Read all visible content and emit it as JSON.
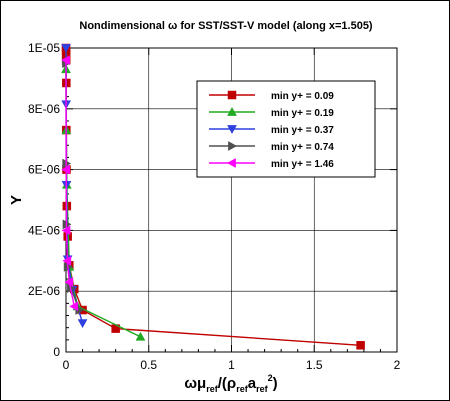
{
  "chart_data": {
    "type": "line",
    "title": "Nondimensional ω for SST/SST-V model (along x=1.505)",
    "xlabel_parts": [
      "ωμ",
      "ref",
      "/(ρ",
      "ref",
      "a",
      "ref",
      "2",
      ")"
    ],
    "ylabel": "Y",
    "xlim": [
      0,
      2
    ],
    "ylim": [
      0,
      1e-05
    ],
    "xticks": [
      0,
      0.5,
      1,
      1.5,
      2
    ],
    "xtick_labels": [
      "0",
      "0.5",
      "1",
      "1.5",
      "2"
    ],
    "yticks": [
      0,
      2e-06,
      4e-06,
      6e-06,
      8e-06,
      1e-05
    ],
    "ytick_labels": [
      "0",
      "2E-06",
      "4E-06",
      "6E-06",
      "8E-06",
      "1E-05"
    ],
    "grid": true,
    "legend_position": "top-right",
    "series": [
      {
        "name": "min y+ = 0.09",
        "color": "#c00000",
        "marker": "square",
        "x": [
          1.78,
          0.3,
          0.1,
          0.05,
          0.02,
          0.01,
          0.005,
          0.003,
          0.002,
          0.002,
          0.001,
          0.001,
          0.0005,
          0.0003
        ],
        "y": [
          2.2e-07,
          7.7e-07,
          1.38e-06,
          2.07e-06,
          2.85e-06,
          3.8e-06,
          4.8e-06,
          6e-06,
          7.3e-06,
          8.85e-06,
          9.6e-06,
          9.8e-06,
          9.9e-06,
          1e-05
        ]
      },
      {
        "name": "min y+ = 0.19",
        "color": "#22aa22",
        "marker": "triangle-up",
        "x": [
          0.45,
          0.07,
          0.02,
          0.005,
          0.002,
          0.0
        ],
        "y": [
          5e-07,
          1.5e-06,
          2.8e-06,
          5.5e-06,
          7.3e-06,
          9.3e-06
        ]
      },
      {
        "name": "min y+ = 0.37",
        "color": "#3040e0",
        "marker": "triangle-down",
        "x": [
          0.1,
          0.04,
          0.01,
          0.003,
          0.001,
          0.0
        ],
        "y": [
          9.5e-07,
          2.05e-06,
          3.05e-06,
          5.5e-06,
          8.15e-06,
          1e-05
        ]
      },
      {
        "name": "min y+ = 0.74",
        "color": "#505050",
        "marker": "triangle-right",
        "x": [
          0.08,
          0.03,
          0.01,
          0.003,
          0.001,
          0.0
        ],
        "y": [
          1.38e-06,
          2.1e-06,
          2.8e-06,
          4.2e-06,
          6.2e-06,
          9.5e-06
        ]
      },
      {
        "name": "min y+ = 1.46",
        "color": "#ff00ff",
        "marker": "triangle-left",
        "x": [
          0.05,
          0.02,
          0.008,
          0.003,
          0.001,
          0.0
        ],
        "y": [
          1.5e-06,
          2.3e-06,
          3e-06,
          4e-06,
          6e-06,
          9.6e-06
        ]
      }
    ]
  }
}
